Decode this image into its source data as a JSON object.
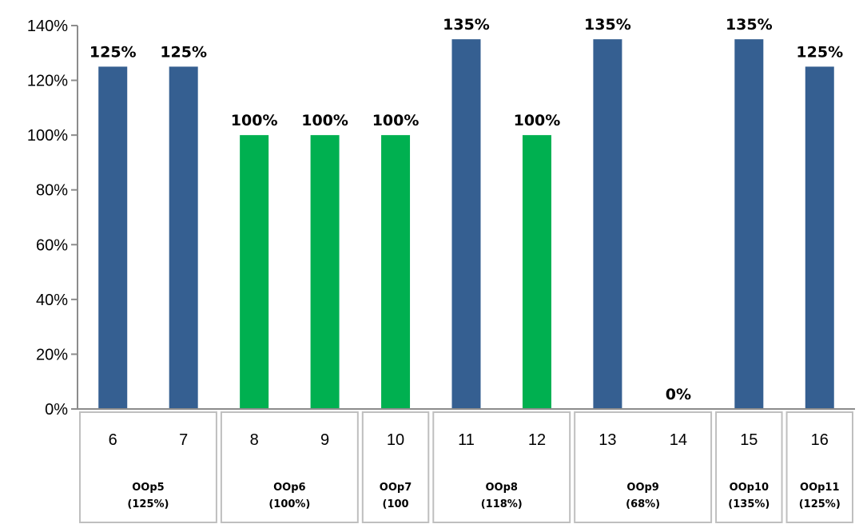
{
  "chart_data": {
    "type": "bar",
    "title": "",
    "xlabel": "",
    "ylabel": "",
    "ylim": [
      0,
      1.4
    ],
    "y_ticks": [
      "0%",
      "20%",
      "40%",
      "60%",
      "80%",
      "100%",
      "120%",
      "140%"
    ],
    "grid": false,
    "legend": "none",
    "categories": [
      "6",
      "7",
      "8",
      "9",
      "10",
      "11",
      "12",
      "13",
      "14",
      "15",
      "16"
    ],
    "values": [
      1.25,
      1.25,
      1.0,
      1.0,
      1.0,
      1.35,
      1.0,
      1.35,
      0.0,
      1.35,
      1.25
    ],
    "data_labels": [
      "125%",
      "125%",
      "100%",
      "100%",
      "100%",
      "135%",
      "100%",
      "135%",
      "0%",
      "135%",
      "125%"
    ],
    "bar_colors": [
      "#355f91",
      "#355f91",
      "#00b050",
      "#00b050",
      "#00b050",
      "#355f91",
      "#00b050",
      "#355f91",
      "#355f91",
      "#355f91",
      "#355f91"
    ],
    "groups": [
      {
        "line1": "OOp5",
        "line2": "(125%)",
        "categories": [
          "6",
          "7"
        ]
      },
      {
        "line1": "OOp6",
        "line2": "(100%)",
        "categories": [
          "8",
          "9"
        ]
      },
      {
        "line1": "OOp7",
        "line2": "(100",
        "categories": [
          "10"
        ]
      },
      {
        "line1": "OOp8",
        "line2": "(118%)",
        "categories": [
          "11",
          "12"
        ]
      },
      {
        "line1": "OOp9",
        "line2": "(68%)",
        "categories": [
          "13",
          "14"
        ]
      },
      {
        "line1": "OOp10",
        "line2": "(135%)",
        "categories": [
          "15"
        ]
      },
      {
        "line1": "OOp11",
        "line2": "(125%)",
        "categories": [
          "16"
        ]
      }
    ]
  }
}
